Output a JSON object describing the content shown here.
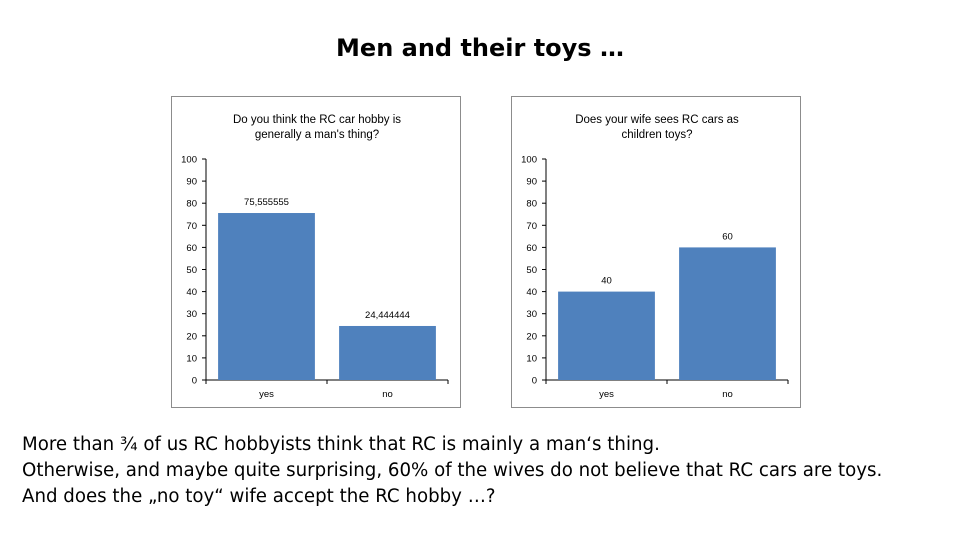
{
  "slide": {
    "title": "Men and their toys …",
    "lines": [
      "More than ¾ of us RC hobbyists think that RC is mainly a man‘s thing.",
      "Otherwise, and maybe quite surprising, 60% of the wives do not believe that RC cars are toys.",
      "And does the „no toy“ wife accept the RC hobby …?"
    ]
  },
  "colors": {
    "bar": "#4f81bd",
    "axis": "#000000",
    "frame": "#8c8c8c"
  },
  "chart_data": [
    {
      "type": "bar",
      "title_lines": [
        "Do you think the RC car hobby is",
        "generally a man's thing?"
      ],
      "categories": [
        "yes",
        "no"
      ],
      "values": [
        75.555555,
        24.444444
      ],
      "value_labels": [
        "75,555555",
        "24,444444"
      ],
      "ylim": [
        0,
        100
      ],
      "yticks": [
        0,
        10,
        20,
        30,
        40,
        50,
        60,
        70,
        80,
        90,
        100
      ],
      "grid": false,
      "legend": "none"
    },
    {
      "type": "bar",
      "title_lines": [
        "Does your wife sees RC cars as",
        "children toys?"
      ],
      "categories": [
        "yes",
        "no"
      ],
      "values": [
        40,
        60
      ],
      "value_labels": [
        "40",
        "60"
      ],
      "ylim": [
        0,
        100
      ],
      "yticks": [
        0,
        10,
        20,
        30,
        40,
        50,
        60,
        70,
        80,
        90,
        100
      ],
      "grid": false,
      "legend": "none"
    }
  ]
}
